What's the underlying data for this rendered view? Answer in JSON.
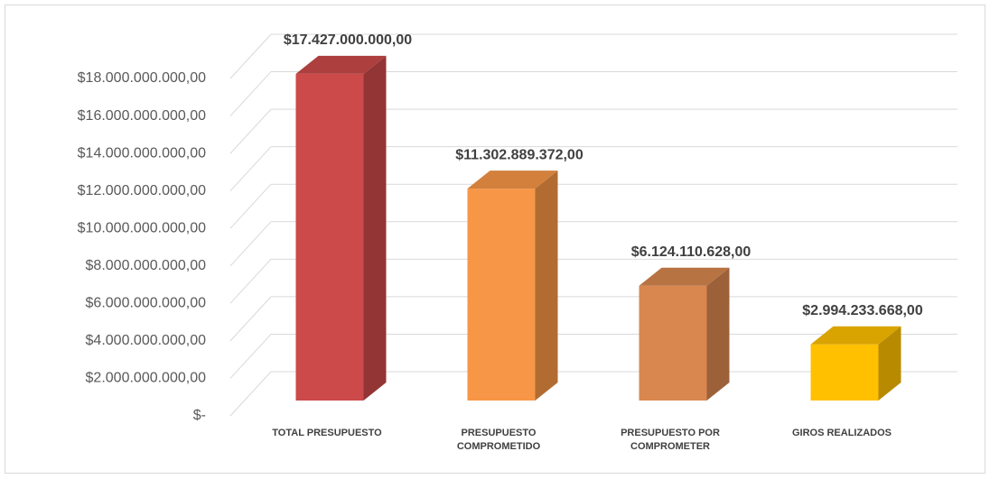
{
  "chart_data": {
    "type": "bar3d",
    "categories": [
      "TOTAL PRESUPUESTO",
      "PRESUPUESTO COMPROMETIDO",
      "PRESUPUESTO POR COMPROMETER",
      "GIROS REALIZADOS"
    ],
    "values": [
      17427000000,
      11302889372,
      6124110628,
      2994233668
    ],
    "value_labels": [
      "$17.427.000.000,00",
      "$11.302.889.372,00",
      "$6.124.110.628,00",
      "$2.994.233.668,00"
    ],
    "colors": [
      "#cc4a4a",
      "#f79646",
      "#d9874f",
      "#ffc000"
    ],
    "ylim": [
      0,
      18000000000
    ],
    "yticks": [
      {
        "value": 0,
        "label": "$-"
      },
      {
        "value": 2000000000,
        "label": "$2.000.000.000,00"
      },
      {
        "value": 4000000000,
        "label": "$4.000.000.000,00"
      },
      {
        "value": 6000000000,
        "label": "$6.000.000.000,00"
      },
      {
        "value": 8000000000,
        "label": "$8.000.000.000,00"
      },
      {
        "value": 10000000000,
        "label": "$10.000.000.000,00"
      },
      {
        "value": 12000000000,
        "label": "$12.000.000.000,00"
      },
      {
        "value": 14000000000,
        "label": "$14.000.000.000,00"
      },
      {
        "value": 16000000000,
        "label": "$16.000.000.000,00"
      },
      {
        "value": 18000000000,
        "label": "$18.000.000.000,00"
      }
    ],
    "grid": true
  }
}
